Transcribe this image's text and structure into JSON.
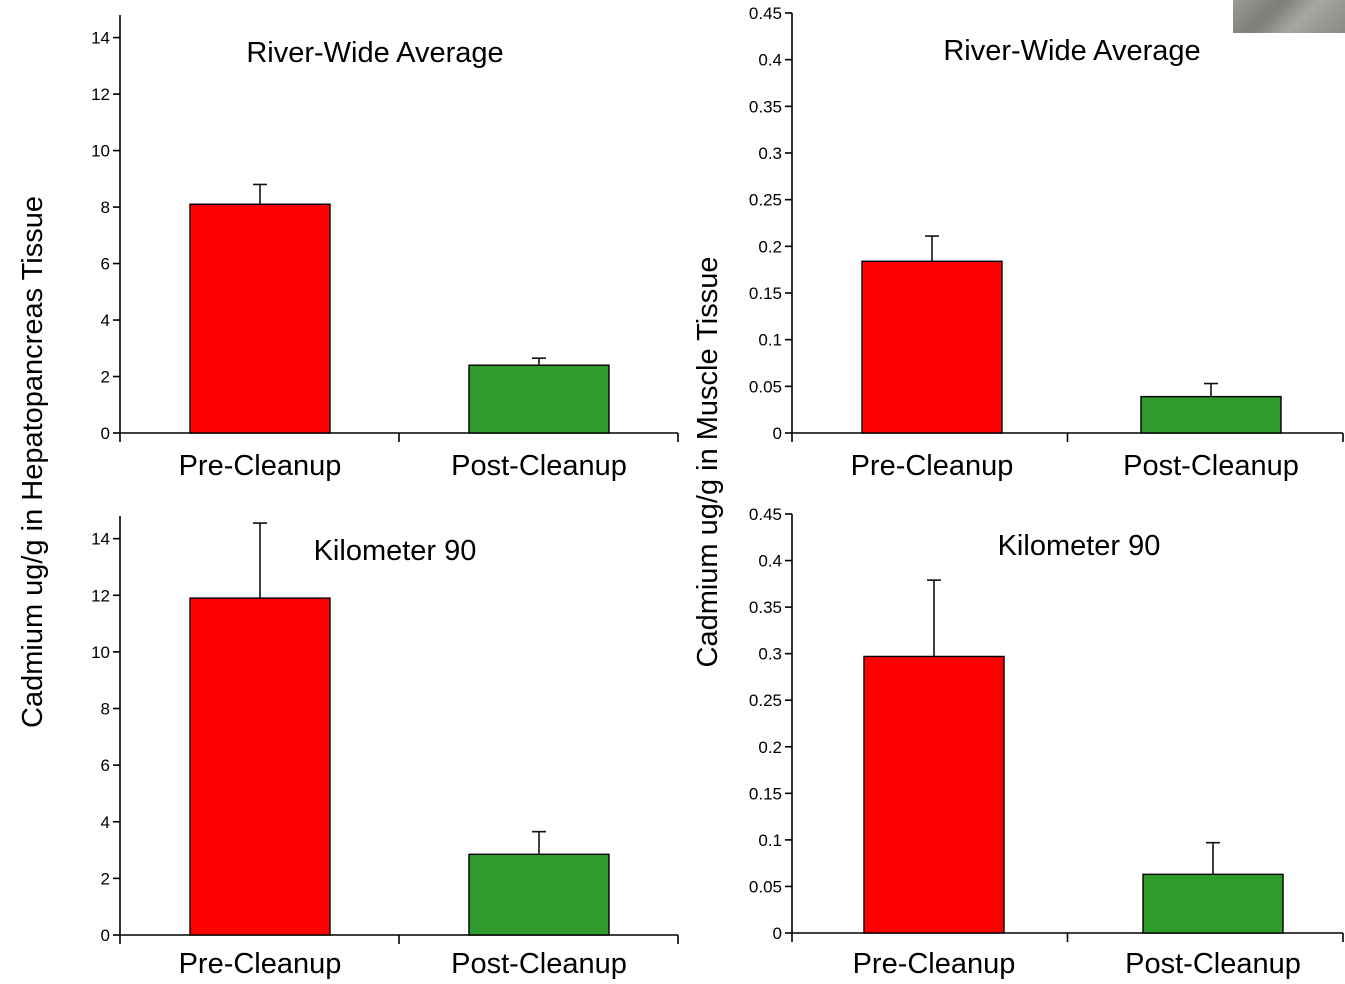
{
  "colors": {
    "pre": "#ff0000",
    "post": "#2f9b2a"
  },
  "figure": {
    "left_ylabel": "Cadmium ug/g in Hepatopancreas Tissue",
    "right_ylabel": "Cadmium ug/g in Muscle Tissue",
    "corner_image": "photo-thumbnail"
  },
  "chart_data": [
    {
      "type": "bar",
      "title": "River-Wide Average",
      "ylabel": "Cadmium ug/g in Hepatopancreas Tissue",
      "categories": [
        "Pre-Cleanup",
        "Post-Cleanup"
      ],
      "values": [
        8.1,
        2.4
      ],
      "error_plus": [
        0.7,
        0.25
      ],
      "ylim": [
        0,
        14.8
      ],
      "yticks": [
        0,
        2,
        4,
        6,
        8,
        10,
        12,
        14
      ],
      "ytick_labels": [
        "0",
        "2",
        "4",
        "6",
        "8",
        "10",
        "12",
        "14"
      ]
    },
    {
      "type": "bar",
      "title": "River-Wide Average",
      "ylabel": "Cadmium ug/g in Muscle Tissue",
      "categories": [
        "Pre-Cleanup",
        "Post-Cleanup"
      ],
      "values": [
        0.184,
        0.039
      ],
      "error_plus": [
        0.027,
        0.014
      ],
      "ylim": [
        0,
        0.45
      ],
      "yticks": [
        0,
        0.05,
        0.1,
        0.15,
        0.2,
        0.25,
        0.3,
        0.35,
        0.4,
        0.45
      ],
      "ytick_labels": [
        "0",
        "0.05",
        "0.1",
        "0.15",
        "0.2",
        "0.25",
        "0.3",
        "0.35",
        "0.4",
        "0.45"
      ]
    },
    {
      "type": "bar",
      "title": "Kilometer 90",
      "ylabel": "Cadmium ug/g in Hepatopancreas Tissue",
      "categories": [
        "Pre-Cleanup",
        "Post-Cleanup"
      ],
      "values": [
        11.9,
        2.85
      ],
      "error_plus": [
        2.65,
        0.8
      ],
      "ylim": [
        0,
        14.8
      ],
      "yticks": [
        0,
        2,
        4,
        6,
        8,
        10,
        12,
        14
      ],
      "ytick_labels": [
        "0",
        "2",
        "4",
        "6",
        "8",
        "10",
        "12",
        "14"
      ]
    },
    {
      "type": "bar",
      "title": "Kilometer 90",
      "ylabel": "Cadmium ug/g in Muscle Tissue",
      "categories": [
        "Pre-Cleanup",
        "Post-Cleanup"
      ],
      "values": [
        0.297,
        0.063
      ],
      "error_plus": [
        0.082,
        0.034
      ],
      "ylim": [
        0,
        0.45
      ],
      "yticks": [
        0,
        0.05,
        0.1,
        0.15,
        0.2,
        0.25,
        0.3,
        0.35,
        0.4,
        0.45
      ],
      "ytick_labels": [
        "0",
        "0.05",
        "0.1",
        "0.15",
        "0.2",
        "0.25",
        "0.3",
        "0.35",
        "0.4",
        "0.45"
      ]
    }
  ]
}
